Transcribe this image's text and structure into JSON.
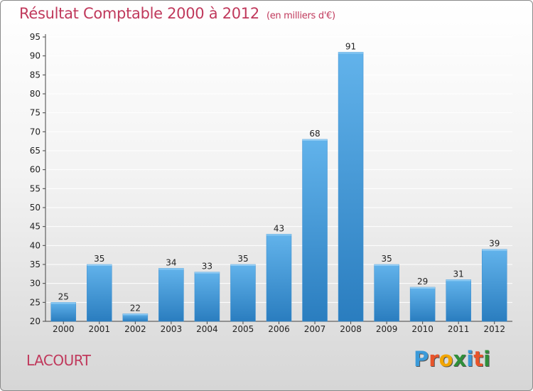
{
  "header": {
    "title": "Résultat Comptable 2000 à 2012",
    "unit": "(en milliers d'€)"
  },
  "footer": {
    "town": "LACOURT",
    "logo_letters": [
      "P",
      "r",
      "o",
      "x",
      "i",
      "t",
      "i"
    ],
    "logo_colors": [
      "#3a9ad9",
      "#e8542a",
      "#f2a500",
      "#2f8f3a",
      "#3a9ad9",
      "#e8542a",
      "#2f8f3a"
    ]
  },
  "colors": {
    "bar_top": "#62b3eb",
    "bar_bottom": "#2a7dbf",
    "grid": "#ffffff",
    "title": "#c0395c"
  },
  "chart_data": {
    "type": "bar",
    "title": "Résultat Comptable 2000 à 2012",
    "subtitle": "(en milliers d'€)",
    "xlabel": "",
    "ylabel": "",
    "categories": [
      "2000",
      "2001",
      "2002",
      "2003",
      "2004",
      "2005",
      "2006",
      "2007",
      "2008",
      "2009",
      "2010",
      "2011",
      "2012"
    ],
    "values": [
      25,
      35,
      22,
      34,
      33,
      35,
      43,
      68,
      91,
      35,
      29,
      31,
      39
    ],
    "ylim": [
      20,
      95
    ],
    "yticks": [
      20,
      25,
      30,
      35,
      40,
      45,
      50,
      55,
      60,
      65,
      70,
      75,
      80,
      85,
      90,
      95
    ],
    "grid": true,
    "legend": "none"
  }
}
